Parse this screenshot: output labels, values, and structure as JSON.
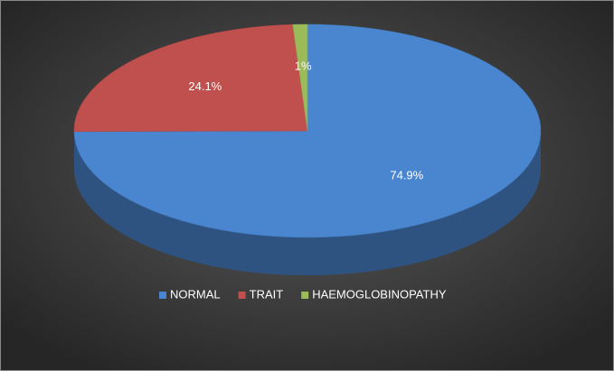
{
  "chart_data": {
    "type": "pie",
    "categories": [
      "NORMAL",
      "TRAIT",
      "HAEMOGLOBINOPATHY"
    ],
    "values": [
      74.9,
      24.1,
      1
    ],
    "value_labels": [
      "74.9%",
      "24.1%",
      "1%"
    ],
    "colors": [
      "#4a86d0",
      "#c0504d",
      "#9bbb59"
    ],
    "legend": "bottom"
  }
}
